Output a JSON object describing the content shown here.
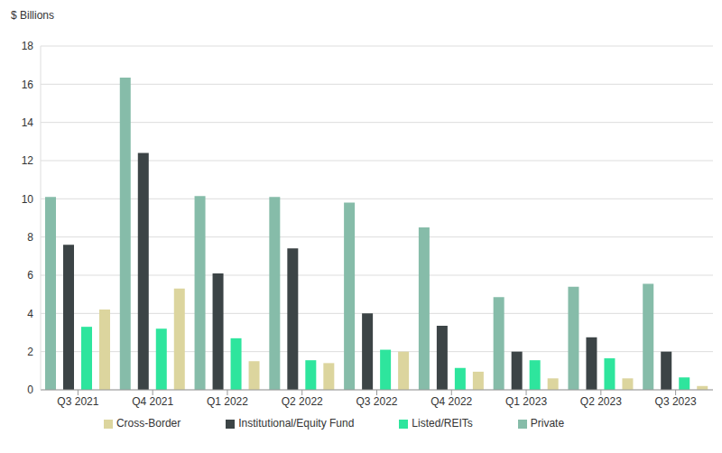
{
  "chart_data": {
    "type": "bar",
    "y_label": "$ Billions",
    "categories": [
      "Q3 2021",
      "Q4 2021",
      "Q1 2022",
      "Q2 2022",
      "Q3 2022",
      "Q4 2022",
      "Q1 2023",
      "Q2 2023",
      "Q3 2023"
    ],
    "series": [
      {
        "name": "Private",
        "color": "#86bca9",
        "values": [
          10.1,
          16.35,
          10.15,
          10.1,
          9.8,
          8.5,
          4.85,
          5.4,
          5.55
        ]
      },
      {
        "name": "Institutional/Equity Fund",
        "color": "#3c4446",
        "values": [
          7.6,
          12.4,
          6.1,
          7.4,
          4.0,
          3.35,
          2.0,
          2.75,
          2.0
        ]
      },
      {
        "name": "Listed/REITs",
        "color": "#2ee59d",
        "values": [
          3.3,
          3.2,
          2.7,
          1.55,
          2.1,
          1.15,
          1.55,
          1.65,
          0.65
        ]
      },
      {
        "name": "Cross-Border",
        "color": "#dcd59e",
        "values": [
          4.2,
          5.3,
          1.5,
          1.4,
          2.0,
          0.95,
          0.6,
          0.6,
          0.2
        ]
      }
    ],
    "ylim": [
      0,
      18
    ],
    "yticks": [
      0,
      2,
      4,
      6,
      8,
      10,
      12,
      14,
      16,
      18
    ],
    "grid": true,
    "legend": "bottom"
  }
}
